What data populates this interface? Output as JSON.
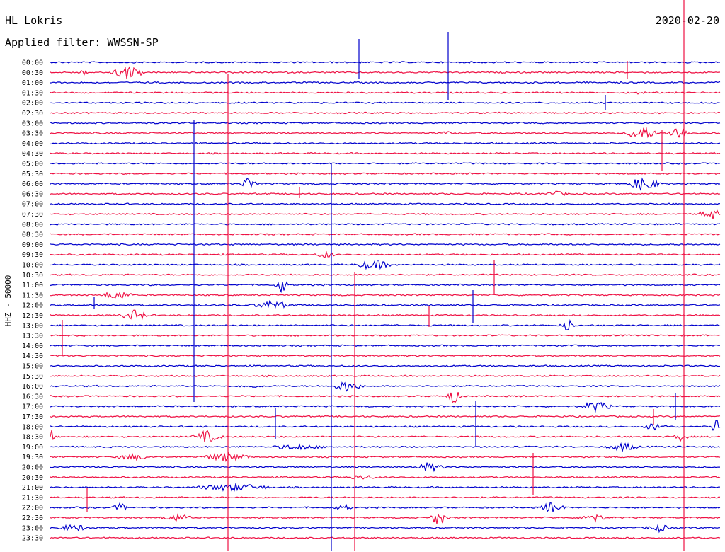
{
  "header": {
    "station": "HL Lokris",
    "filter": "Applied filter: WWSSN-SP",
    "date": "2020-02-20"
  },
  "chart_data": {
    "type": "line",
    "ylabel": "HHZ - 50000",
    "row_labels": [
      "00:00",
      "00:30",
      "01:00",
      "01:30",
      "02:00",
      "02:30",
      "03:00",
      "03:30",
      "04:00",
      "04:30",
      "05:00",
      "05:30",
      "06:00",
      "06:30",
      "07:00",
      "07:30",
      "08:00",
      "08:30",
      "09:00",
      "09:30",
      "10:00",
      "10:30",
      "11:00",
      "11:30",
      "12:00",
      "12:30",
      "13:00",
      "13:30",
      "14:00",
      "14:30",
      "15:00",
      "15:30",
      "16:00",
      "16:30",
      "17:00",
      "17:30",
      "18:00",
      "18:30",
      "19:00",
      "19:30",
      "20:00",
      "20:30",
      "21:00",
      "21:30",
      "22:00",
      "22:30",
      "23:00",
      "23:30"
    ],
    "series_colors": [
      "#0000cc",
      "#ee1144"
    ],
    "grid": false
  }
}
